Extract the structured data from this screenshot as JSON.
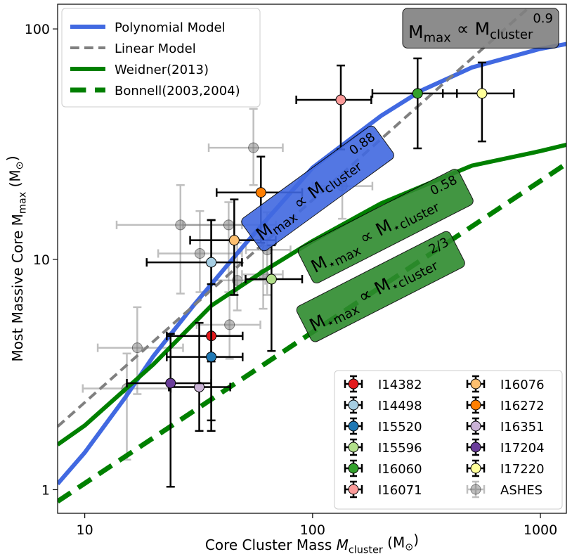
{
  "chart_data": {
    "type": "scatter",
    "xscale": "log",
    "yscale": "log",
    "xlim": [
      7.6,
      1300
    ],
    "ylim": [
      0.79,
      128
    ],
    "xticks": [
      10,
      100,
      1000
    ],
    "yticks": [
      1,
      10,
      100
    ],
    "x_label": [
      {
        "text": "Core Cluster Mass "
      },
      {
        "text": "M",
        "italic": true
      },
      {
        "text": "cluster",
        "shift": "sub"
      },
      {
        "text": " (M"
      },
      {
        "text": "⊙",
        "shift": "sub"
      },
      {
        "text": ")"
      }
    ],
    "y_label": [
      {
        "text": "Most Massive Core M"
      },
      {
        "text": "max",
        "shift": "sub"
      },
      {
        "text": " (M"
      },
      {
        "text": "⊙",
        "shift": "sub"
      },
      {
        "text": ")"
      }
    ],
    "lines": [
      {
        "name": "Polynomial Model",
        "color": "#4169e1",
        "style": "solid",
        "x": [
          7.6,
          10,
          15,
          20,
          30,
          50,
          100,
          200,
          300,
          500,
          1000,
          1300
        ],
        "values": [
          1.06,
          1.45,
          2.5,
          3.8,
          6.3,
          11.5,
          25,
          42,
          54,
          68,
          82,
          86
        ]
      },
      {
        "name": "Linear Model",
        "color": "#808080",
        "style": "dashed",
        "x": [
          7.6,
          100,
          900
        ],
        "values": [
          1.88,
          18.1,
          125
        ]
      },
      {
        "name": "Weidner(2013)",
        "color": "#008000",
        "style": "solid",
        "x": [
          7.6,
          10,
          20,
          36,
          60,
          100,
          200,
          500,
          1000,
          1300
        ],
        "values": [
          1.57,
          1.9,
          3.5,
          6.3,
          8.8,
          12,
          17.5,
          25.5,
          29.5,
          31.4
        ]
      },
      {
        "name": "Bonnell(2003,2004)",
        "color": "#008000",
        "style": "dashed",
        "x": [
          7.6,
          1300
        ],
        "values": [
          0.89,
          26
        ]
      }
    ],
    "series": [
      {
        "name": "I14382",
        "color": "#e31a1c",
        "x": [
          35.9
        ],
        "values": [
          4.65
        ],
        "x_low": [
          22.9
        ],
        "x_high": [
          49.3
        ],
        "y_low": [
          1.8
        ],
        "y_high": [
          14.8
        ]
      },
      {
        "name": "I14498",
        "color": "#a6cee3",
        "x": [
          35.9
        ],
        "values": [
          9.7
        ],
        "x_low": [
          18.7
        ],
        "x_high": [
          49
        ],
        "y_low": [
          3.6
        ],
        "y_high": [
          14.8
        ]
      },
      {
        "name": "I15520",
        "color": "#1f78b4",
        "x": [
          35.9
        ],
        "values": [
          3.77
        ],
        "x_low": [
          22.9
        ],
        "x_high": [
          49.3
        ],
        "y_low": [
          2.0
        ],
        "y_high": [
          7.8
        ]
      },
      {
        "name": "I15596",
        "color": "#b2df8a",
        "x": [
          66
        ],
        "values": [
          8.2
        ],
        "x_low": [
          50.8
        ],
        "x_high": [
          90
        ],
        "y_low": [
          4.0
        ],
        "y_high": [
          11.5
        ]
      },
      {
        "name": "I16060",
        "color": "#33a02c",
        "x": [
          289
        ],
        "values": [
          52.5
        ],
        "x_low": [
          183
        ],
        "x_high": [
          430
        ],
        "y_low": [
          30.3
        ],
        "y_high": [
          74.5
        ]
      },
      {
        "name": "I16071",
        "color": "#fb9a99",
        "x": [
          133
        ],
        "values": [
          49.2
        ],
        "x_low": [
          84.8
        ],
        "x_high": [
          181
        ],
        "y_low": [
          30
        ],
        "y_high": [
          69.4
        ]
      },
      {
        "name": "I16076",
        "color": "#fdbf6f",
        "x": [
          45.3
        ],
        "values": [
          12.1
        ],
        "x_low": [
          29
        ],
        "x_high": [
          68.9
        ],
        "y_low": [
          7.0
        ],
        "y_high": [
          18.2
        ]
      },
      {
        "name": "I16272",
        "color": "#ff7f00",
        "x": [
          59.3
        ],
        "values": [
          19.5
        ],
        "x_low": [
          37.9
        ],
        "x_high": [
          90
        ],
        "y_low": [
          11.8
        ],
        "y_high": [
          27.9
        ]
      },
      {
        "name": "I16351",
        "color": "#cab2d6",
        "x": [
          31.8
        ],
        "values": [
          2.79
        ],
        "x_low": [
          23.4
        ],
        "x_high": [
          43.5
        ],
        "y_low": [
          1.8
        ],
        "y_high": [
          5.3
        ]
      },
      {
        "name": "I17204",
        "color": "#6a3d9a",
        "x": [
          23.8
        ],
        "values": [
          2.9
        ],
        "x_low": [
          15.3
        ],
        "x_high": [
          35.9
        ],
        "y_low": [
          1.03
        ],
        "y_high": [
          4.75
        ]
      },
      {
        "name": "I17220",
        "color": "#ffff99",
        "x": [
          554
        ],
        "values": [
          52.5
        ],
        "x_low": [
          373
        ],
        "x_high": [
          764
        ],
        "y_low": [
          32.5
        ],
        "y_high": [
          71.5
        ]
      },
      {
        "name": "ASHES",
        "color": "#808080",
        "alpha": 0.5,
        "x": [
          17.0,
          15.3,
          26.3,
          32.0,
          42.8,
          46.7,
          43.2,
          55.0,
          60.7,
          63.2,
          135
        ],
        "values": [
          4.13,
          2.75,
          14.1,
          10.6,
          14.1,
          8.1,
          5.2,
          30.5,
          8.6,
          11.0,
          20.8
        ],
        "x_low": [
          11.4,
          9.8,
          13.8,
          21,
          27,
          36,
          31,
          35,
          49,
          51,
          100
        ],
        "x_high": [
          27,
          23.9,
          49,
          49,
          69,
          62,
          59,
          74,
          74,
          80,
          183
        ],
        "y_low": [
          2.6,
          1.35,
          7.1,
          7.2,
          7.2,
          6.0,
          3.7,
          21,
          6.1,
          7,
          15
        ],
        "y_high": [
          6.2,
          3.9,
          21,
          16.2,
          17.7,
          11.8,
          7.0,
          45,
          12.6,
          16,
          23
        ]
      }
    ],
    "annotations": [
      {
        "color": "#808080",
        "parts": [
          {
            "text": "M"
          },
          {
            "text": "max",
            "shift": "sub"
          },
          {
            "text": " ∝ M"
          },
          {
            "text": "cluster",
            "shift": "sub"
          },
          {
            "text": "0.9",
            "shift": "sup"
          }
        ]
      },
      {
        "color": "#4169e1",
        "parts": [
          {
            "text": "M"
          },
          {
            "text": "max",
            "shift": "sub"
          },
          {
            "text": " ∝ M"
          },
          {
            "text": "cluster",
            "shift": "sub"
          },
          {
            "text": "0.88",
            "shift": "sup"
          }
        ]
      },
      {
        "color": "#2e8b2e",
        "parts": [
          {
            "text": "M"
          },
          {
            "text": "⋆max",
            "shift": "sub"
          },
          {
            "text": " ∝ M"
          },
          {
            "text": "⋆cluster",
            "shift": "sub"
          },
          {
            "text": "0.58",
            "shift": "sup"
          }
        ]
      },
      {
        "color": "#2e8b2e",
        "parts": [
          {
            "text": "M"
          },
          {
            "text": "⋆max",
            "shift": "sub"
          },
          {
            "text": " ∝ M"
          },
          {
            "text": "⋆cluster",
            "shift": "sub"
          },
          {
            "text": "2/3",
            "shift": "sup"
          }
        ]
      }
    ]
  }
}
